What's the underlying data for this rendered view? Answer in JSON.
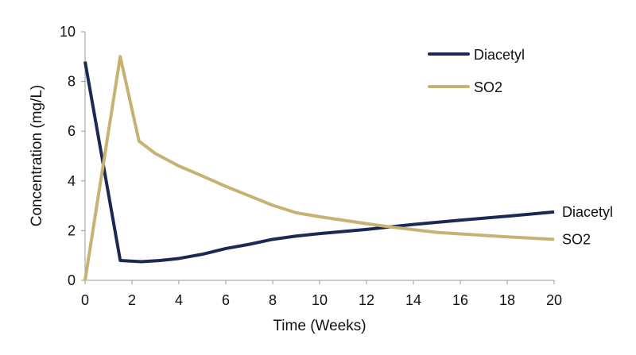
{
  "chart_data": {
    "type": "line",
    "xlabel": "Time (Weeks)",
    "ylabel": "Concentration (mg/L)",
    "xlim": [
      0,
      20
    ],
    "ylim": [
      0,
      10
    ],
    "x_ticks": [
      0,
      2,
      4,
      6,
      8,
      10,
      12,
      14,
      16,
      18,
      20
    ],
    "y_ticks": [
      0,
      2,
      4,
      6,
      8,
      10
    ],
    "grid": false,
    "legend_position": "top-right",
    "series": [
      {
        "name": "Diacetyl",
        "color": "#1b2a55",
        "end_label": "Diacetyl",
        "points": [
          {
            "x": 0,
            "y": 8.8
          },
          {
            "x": 1.5,
            "y": 0.8
          },
          {
            "x": 2.4,
            "y": 0.75
          },
          {
            "x": 3.2,
            "y": 0.8
          },
          {
            "x": 4,
            "y": 0.88
          },
          {
            "x": 5,
            "y": 1.05
          },
          {
            "x": 6,
            "y": 1.28
          },
          {
            "x": 7,
            "y": 1.45
          },
          {
            "x": 8,
            "y": 1.65
          },
          {
            "x": 9,
            "y": 1.78
          },
          {
            "x": 10,
            "y": 1.88
          },
          {
            "x": 12,
            "y": 2.05
          },
          {
            "x": 14,
            "y": 2.25
          },
          {
            "x": 16,
            "y": 2.42
          },
          {
            "x": 18,
            "y": 2.58
          },
          {
            "x": 20,
            "y": 2.75
          }
        ]
      },
      {
        "name": "SO2",
        "color": "#c8b273",
        "end_label": "SO2",
        "points": [
          {
            "x": 0,
            "y": 0
          },
          {
            "x": 1.5,
            "y": 9.0
          },
          {
            "x": 2.3,
            "y": 5.6
          },
          {
            "x": 3,
            "y": 5.1
          },
          {
            "x": 4,
            "y": 4.6
          },
          {
            "x": 5,
            "y": 4.2
          },
          {
            "x": 6,
            "y": 3.78
          },
          {
            "x": 7,
            "y": 3.4
          },
          {
            "x": 8,
            "y": 3.02
          },
          {
            "x": 9,
            "y": 2.72
          },
          {
            "x": 10,
            "y": 2.56
          },
          {
            "x": 12,
            "y": 2.28
          },
          {
            "x": 13,
            "y": 2.15
          },
          {
            "x": 15,
            "y": 1.93
          },
          {
            "x": 18,
            "y": 1.75
          },
          {
            "x": 20,
            "y": 1.65
          }
        ]
      }
    ]
  }
}
